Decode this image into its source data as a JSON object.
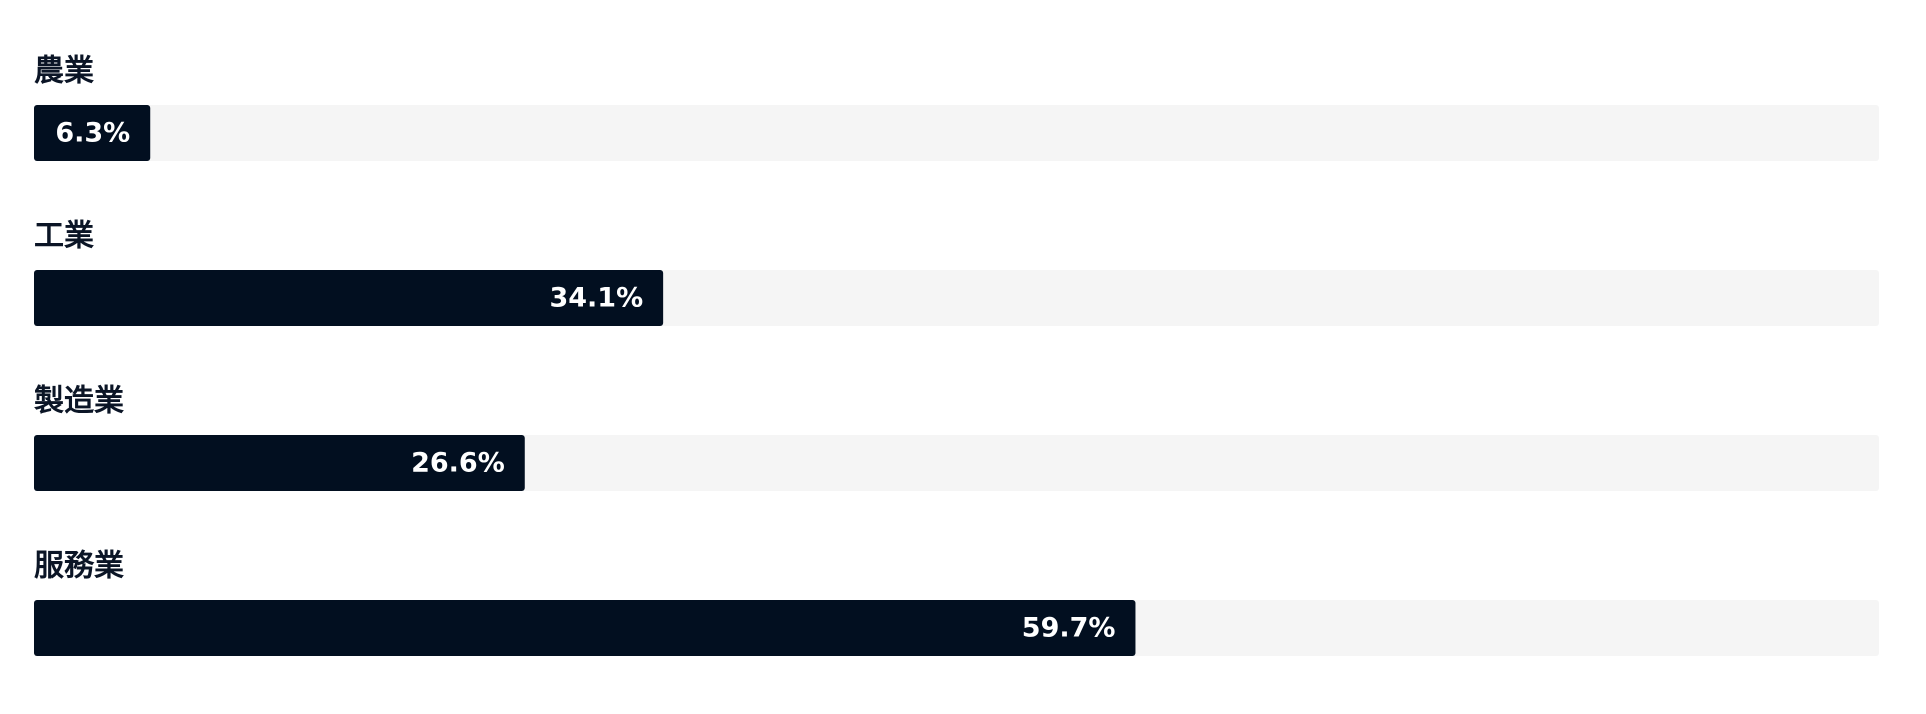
{
  "chart_data": {
    "type": "bar",
    "orientation": "horizontal",
    "categories": [
      "農業",
      "工業",
      "製造業",
      "服務業"
    ],
    "values": [
      6.3,
      34.1,
      26.6,
      59.7
    ],
    "value_labels": [
      "6.3%",
      "34.1%",
      "26.6%",
      "59.7%"
    ],
    "xlim": [
      0,
      100
    ],
    "color": "#020f20",
    "track_color": "#f5f5f5"
  }
}
